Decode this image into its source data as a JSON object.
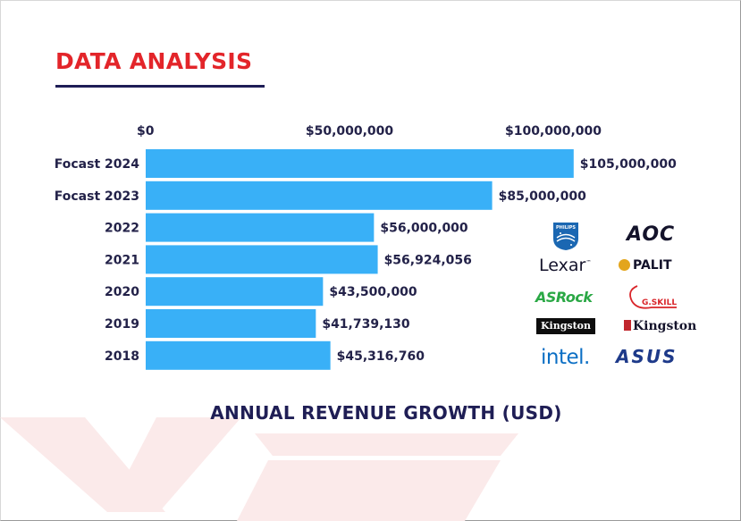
{
  "header": {
    "title": "DATA ANALYSIS"
  },
  "colors": {
    "bar": "#39b0f7",
    "accent": "#e3252a",
    "text": "#232249"
  },
  "chart_data": {
    "type": "bar",
    "orientation": "horizontal",
    "title": "ANNUAL REVENUE GROWTH (USD)",
    "xlim": [
      0,
      105000000
    ],
    "x_ticks": [
      0,
      50000000,
      100000000
    ],
    "x_tick_labels": [
      "$0",
      "$50,000,000",
      "$100,000,000"
    ],
    "axis_position": "top",
    "grid": false,
    "categories": [
      "Focast 2024",
      "Focast 2023",
      "2022",
      "2021",
      "2020",
      "2019",
      "2018"
    ],
    "values": [
      105000000,
      85000000,
      56000000,
      56924056,
      43500000,
      41739130,
      45316760
    ],
    "data_labels": [
      "$105,000,000",
      "$85,000,000",
      "$56,000,000",
      "$56,924,056",
      "$43,500,000",
      "$41,739,130",
      "$45,316,760"
    ]
  },
  "logos": {
    "philips": "PHILIPS",
    "aoc": "AOC",
    "lexar": "Lexar",
    "palit": "PALIT",
    "asrock": "ASRock",
    "gskill": "G.SKILL",
    "kingston_black": "Kingston",
    "kingston_white": "Kingston",
    "intel": "intel.",
    "asus": "ASUS"
  }
}
